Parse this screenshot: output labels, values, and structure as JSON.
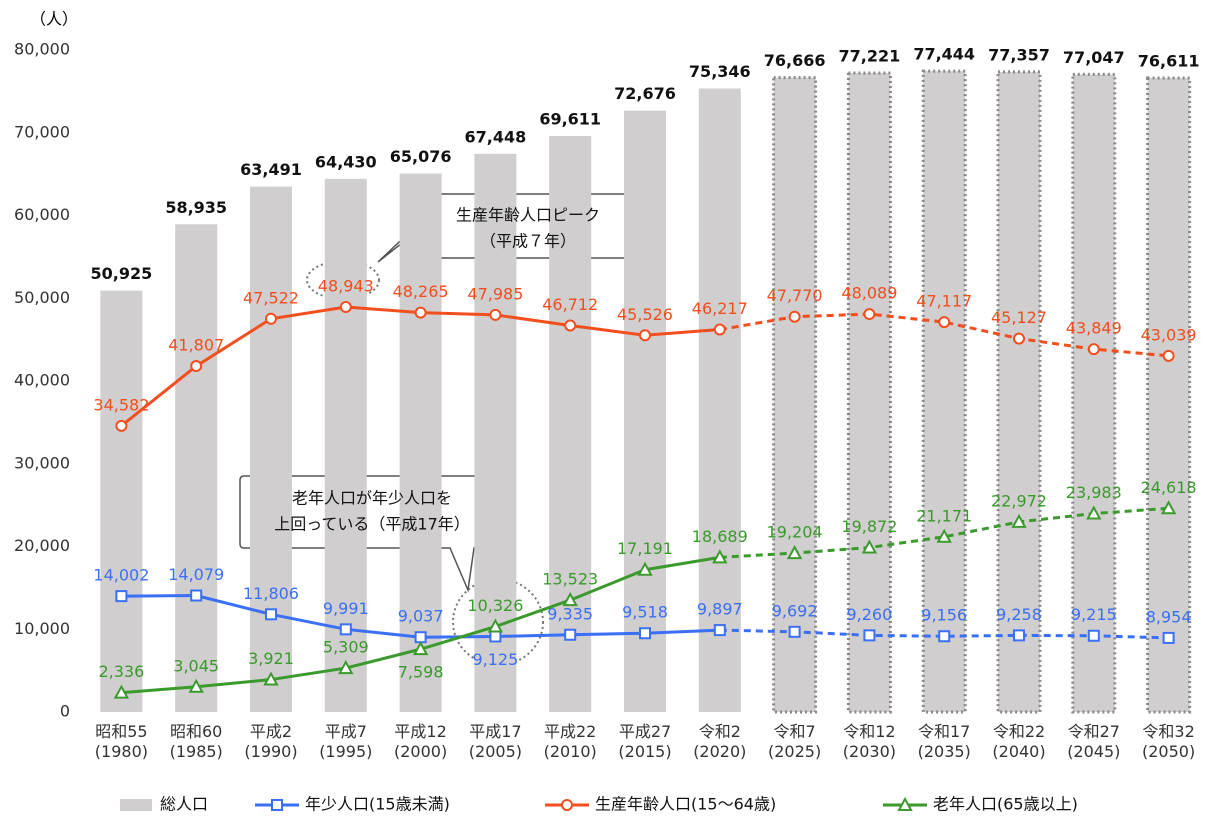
{
  "chart_data": {
    "type": "bar_line",
    "y_unit": "（人）",
    "categories": [
      "昭和55\n(1980)",
      "昭和60\n(1985)",
      "平成2\n(1990)",
      "平成7\n(1995)",
      "平成12\n(2000)",
      "平成17\n(2005)",
      "平成22\n(2010)",
      "平成27\n(2015)",
      "令和2\n(2020)",
      "令和7\n(2025)",
      "令和12\n(2030)",
      "令和17\n(2035)",
      "令和22\n(2040)",
      "令和27\n(2045)",
      "令和32\n(2050)"
    ],
    "ylim": [
      0,
      80000
    ],
    "yticks": [
      0,
      {
        "value": 10000,
        "label": "10,000"
      },
      {
        "value": 20000,
        "label": "20,000"
      },
      {
        "value": 30000,
        "label": "30,000"
      },
      {
        "value": 40000,
        "label": "40,000"
      },
      {
        "value": 50000,
        "label": "50,000"
      },
      {
        "value": 60000,
        "label": "60,000"
      },
      {
        "value": 70000,
        "label": "70,000"
      },
      {
        "value": 80000,
        "label": "80,000"
      }
    ],
    "projection_start_index": 9,
    "series": [
      {
        "name": "総人口",
        "kind": "bar",
        "color": "#d0cece",
        "values": [
          50925,
          58935,
          63491,
          64430,
          65076,
          67448,
          69611,
          72676,
          75346,
          76666,
          77221,
          77444,
          77357,
          77047,
          76611
        ],
        "value_labels": [
          "50,925",
          "58,935",
          "63,491",
          "64,430",
          "65,076",
          "67,448",
          "69,611",
          "72,676",
          "75,346",
          "76,666",
          "77,221",
          "77,444",
          "77,357",
          "77,047",
          "76,611"
        ]
      },
      {
        "name": "年少人口(15歳未満)",
        "kind": "line",
        "marker": "square",
        "color": "#3a6ff7",
        "values": [
          14002,
          14079,
          11806,
          9991,
          9037,
          9125,
          9335,
          9518,
          9897,
          9692,
          9260,
          9156,
          9258,
          9215,
          8954
        ],
        "value_labels": [
          "14,002",
          "14,079",
          "11,806",
          "9,991",
          "9,037",
          "9,125",
          "9,335",
          "9,518",
          "9,897",
          "9,692",
          "9,260",
          "9,156",
          "9,258",
          "9,215",
          "8,954"
        ]
      },
      {
        "name": "生産年齢人口(15～64歳)",
        "kind": "line",
        "marker": "circle",
        "color": "#f24e1e",
        "values": [
          34582,
          41807,
          47522,
          48943,
          48265,
          47985,
          46712,
          45526,
          46217,
          47770,
          48089,
          47117,
          45127,
          43849,
          43039
        ],
        "value_labels": [
          "34,582",
          "41,807",
          "47,522",
          "48,943",
          "48,265",
          "47,985",
          "46,712",
          "45,526",
          "46,217",
          "47,770",
          "48,089",
          "47,117",
          "45,127",
          "43,849",
          "43,039"
        ]
      },
      {
        "name": "老年人口(65歳以上)",
        "kind": "line",
        "marker": "triangle",
        "color": "#3a9a2c",
        "values": [
          2336,
          3045,
          3921,
          5309,
          7598,
          10326,
          13523,
          17191,
          18689,
          19204,
          19872,
          21171,
          22972,
          23983,
          24618
        ],
        "value_labels": [
          "2,336",
          "3,045",
          "3,921",
          "5,309",
          "7,598",
          "10,326",
          "13,523",
          "17,191",
          "18,689",
          "19,204",
          "19,872",
          "21,171",
          "22,972",
          "23,983",
          "24,618"
        ]
      }
    ],
    "annotations": [
      [
        "生産年齢人口ピーク",
        "（平成７年）"
      ],
      [
        "老年人口が年少人口を",
        "上回っている（平成17年）"
      ]
    ]
  }
}
